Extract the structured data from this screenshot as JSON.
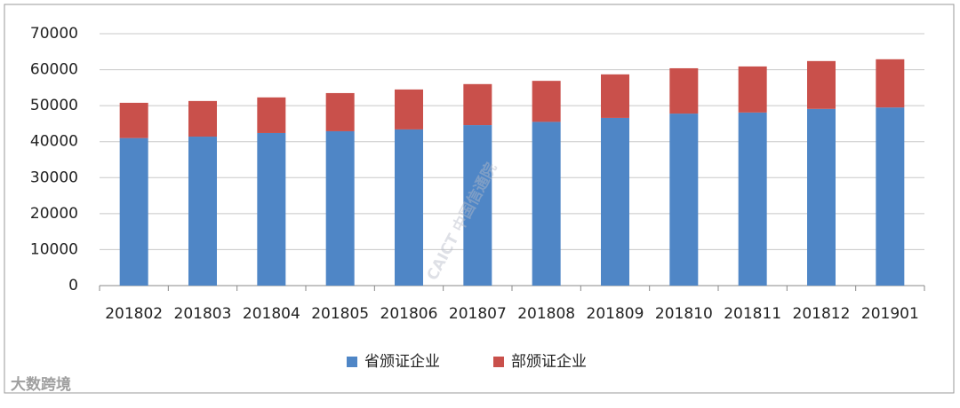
{
  "chart_data": {
    "type": "stacked-bar",
    "categories": [
      "201802",
      "201803",
      "201804",
      "201805",
      "201806",
      "201807",
      "201808",
      "201809",
      "201810",
      "201811",
      "201812",
      "201901"
    ],
    "series": [
      {
        "name": "省颁证企业",
        "color": "#4f86c6",
        "values": [
          41000,
          41400,
          42400,
          42900,
          43400,
          44600,
          45500,
          46600,
          47800,
          48100,
          49100,
          49500
        ]
      },
      {
        "name": "部颁证企业",
        "color": "#c9504b",
        "values": [
          9800,
          9900,
          9900,
          10600,
          11100,
          11400,
          11400,
          12100,
          12600,
          12800,
          13300,
          13400
        ]
      }
    ],
    "ylim": [
      0,
      70000
    ],
    "yticks": [
      0,
      10000,
      20000,
      30000,
      40000,
      50000,
      60000,
      70000
    ],
    "grid": true,
    "legend": "bottom"
  },
  "watermarks": [
    "CAICT 中国信通院",
    "大数跨境"
  ]
}
